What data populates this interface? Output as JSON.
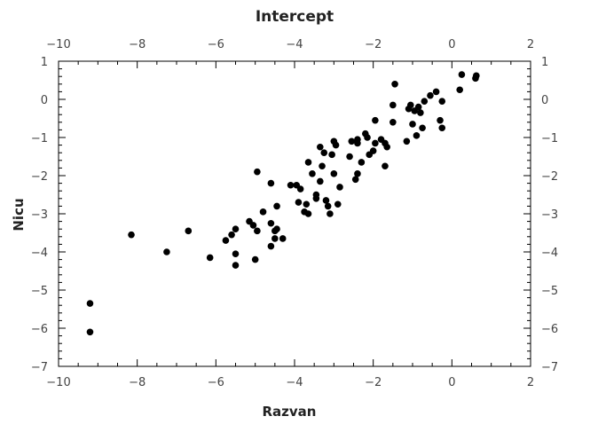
{
  "chart_data": {
    "type": "scatter",
    "title": "Intercept",
    "xlabel": "Razvan",
    "ylabel": "Nicu",
    "xlim": [
      -10,
      2
    ],
    "ylim": [
      -7,
      1
    ],
    "x_ticks": [
      "−10",
      "−8",
      "−6",
      "−4",
      "−2",
      "0",
      "2"
    ],
    "y_ticks": [
      "1",
      "0",
      "−1",
      "−2",
      "−3",
      "−4",
      "−5",
      "−6",
      "−7"
    ],
    "grid": false,
    "marker_color": "#000000",
    "points": [
      {
        "x": -9.2,
        "y": -5.35
      },
      {
        "x": -9.2,
        "y": -6.1
      },
      {
        "x": -8.15,
        "y": -3.55
      },
      {
        "x": -7.25,
        "y": -4.0
      },
      {
        "x": -6.7,
        "y": -3.45
      },
      {
        "x": -6.15,
        "y": -4.15
      },
      {
        "x": -5.75,
        "y": -3.7
      },
      {
        "x": -5.6,
        "y": -3.55
      },
      {
        "x": -5.5,
        "y": -3.4
      },
      {
        "x": -5.5,
        "y": -4.05
      },
      {
        "x": -5.5,
        "y": -4.35
      },
      {
        "x": -5.15,
        "y": -3.2
      },
      {
        "x": -5.05,
        "y": -3.3
      },
      {
        "x": -5.0,
        "y": -4.2
      },
      {
        "x": -4.95,
        "y": -3.45
      },
      {
        "x": -4.95,
        "y": -1.9
      },
      {
        "x": -4.8,
        "y": -2.95
      },
      {
        "x": -4.6,
        "y": -2.2
      },
      {
        "x": -4.6,
        "y": -3.25
      },
      {
        "x": -4.6,
        "y": -3.85
      },
      {
        "x": -4.5,
        "y": -3.45
      },
      {
        "x": -4.5,
        "y": -3.65
      },
      {
        "x": -4.45,
        "y": -2.8
      },
      {
        "x": -4.45,
        "y": -3.4
      },
      {
        "x": -4.3,
        "y": -3.65
      },
      {
        "x": -4.1,
        "y": -2.25
      },
      {
        "x": -3.95,
        "y": -2.25
      },
      {
        "x": -3.9,
        "y": -2.7
      },
      {
        "x": -3.85,
        "y": -2.35
      },
      {
        "x": -3.75,
        "y": -2.95
      },
      {
        "x": -3.7,
        "y": -2.75
      },
      {
        "x": -3.65,
        "y": -1.65
      },
      {
        "x": -3.65,
        "y": -3.0
      },
      {
        "x": -3.55,
        "y": -1.95
      },
      {
        "x": -3.45,
        "y": -2.5
      },
      {
        "x": -3.45,
        "y": -2.6
      },
      {
        "x": -3.35,
        "y": -1.25
      },
      {
        "x": -3.35,
        "y": -2.15
      },
      {
        "x": -3.3,
        "y": -1.75
      },
      {
        "x": -3.25,
        "y": -1.4
      },
      {
        "x": -3.2,
        "y": -2.65
      },
      {
        "x": -3.15,
        "y": -2.8
      },
      {
        "x": -3.1,
        "y": -3.0
      },
      {
        "x": -3.05,
        "y": -1.45
      },
      {
        "x": -3.0,
        "y": -1.95
      },
      {
        "x": -3.0,
        "y": -1.1
      },
      {
        "x": -2.95,
        "y": -1.2
      },
      {
        "x": -2.9,
        "y": -2.75
      },
      {
        "x": -2.85,
        "y": -2.3
      },
      {
        "x": -2.6,
        "y": -1.5
      },
      {
        "x": -2.55,
        "y": -1.1
      },
      {
        "x": -2.45,
        "y": -2.1
      },
      {
        "x": -2.4,
        "y": -1.05
      },
      {
        "x": -2.4,
        "y": -1.15
      },
      {
        "x": -2.4,
        "y": -1.95
      },
      {
        "x": -2.3,
        "y": -1.65
      },
      {
        "x": -2.2,
        "y": -0.9
      },
      {
        "x": -2.15,
        "y": -1.0
      },
      {
        "x": -2.1,
        "y": -1.45
      },
      {
        "x": -2.0,
        "y": -1.35
      },
      {
        "x": -1.95,
        "y": -1.15
      },
      {
        "x": -1.95,
        "y": -0.55
      },
      {
        "x": -1.8,
        "y": -1.05
      },
      {
        "x": -1.7,
        "y": -1.15
      },
      {
        "x": -1.7,
        "y": -1.75
      },
      {
        "x": -1.65,
        "y": -1.25
      },
      {
        "x": -1.5,
        "y": -0.6
      },
      {
        "x": -1.5,
        "y": -0.15
      },
      {
        "x": -1.45,
        "y": 0.4
      },
      {
        "x": -1.15,
        "y": -1.1
      },
      {
        "x": -1.1,
        "y": -0.25
      },
      {
        "x": -1.05,
        "y": -0.15
      },
      {
        "x": -1.0,
        "y": -0.65
      },
      {
        "x": -0.95,
        "y": -0.3
      },
      {
        "x": -0.9,
        "y": -0.95
      },
      {
        "x": -0.85,
        "y": -0.2
      },
      {
        "x": -0.8,
        "y": -0.35
      },
      {
        "x": -0.75,
        "y": -0.75
      },
      {
        "x": -0.7,
        "y": -0.05
      },
      {
        "x": -0.55,
        "y": 0.1
      },
      {
        "x": -0.4,
        "y": 0.2
      },
      {
        "x": -0.3,
        "y": -0.55
      },
      {
        "x": -0.25,
        "y": -0.75
      },
      {
        "x": -0.25,
        "y": -0.05
      },
      {
        "x": 0.2,
        "y": 0.25
      },
      {
        "x": 0.25,
        "y": 0.65
      },
      {
        "x": 0.6,
        "y": 0.55
      },
      {
        "x": 0.62,
        "y": 0.62
      }
    ]
  }
}
